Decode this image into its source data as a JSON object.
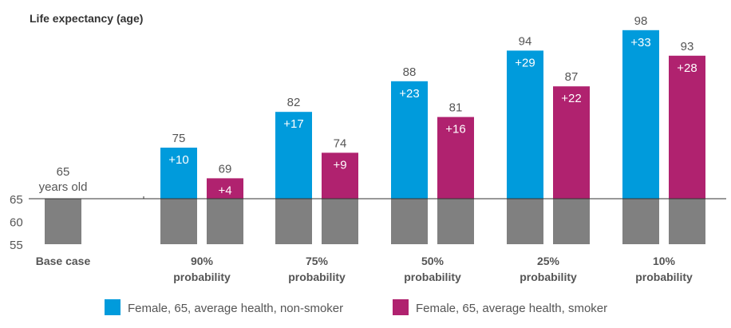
{
  "chart_data": {
    "type": "bar",
    "ylabel": "Life expectancy (age)",
    "y_ticks": [
      "55",
      "60",
      "65"
    ],
    "ylim": [
      55,
      100
    ],
    "baseline": 65,
    "base_case": {
      "label": "Base case",
      "value": 65,
      "value_label": "65",
      "value_sublabel": "years old"
    },
    "categories": [
      [
        "90%",
        "probability"
      ],
      [
        "75%",
        "probability"
      ],
      [
        "50%",
        "probability"
      ],
      [
        "25%",
        "probability"
      ],
      [
        "10%",
        "probability"
      ]
    ],
    "series": [
      {
        "name": "Female, 65, average health, non-smoker",
        "color": "#009bdc",
        "values": [
          75,
          82,
          88,
          94,
          98
        ],
        "gain_labels": [
          "+10",
          "+17",
          "+23",
          "+29",
          "+33"
        ]
      },
      {
        "name": "Female, 65, average health, smoker",
        "color": "#b0226f",
        "values": [
          69,
          74,
          81,
          87,
          93
        ],
        "gain_labels": [
          "+4",
          "+9",
          "+16",
          "+22",
          "+28"
        ]
      }
    ],
    "base_color": "#808080",
    "grid": false,
    "legend_position": "bottom"
  }
}
